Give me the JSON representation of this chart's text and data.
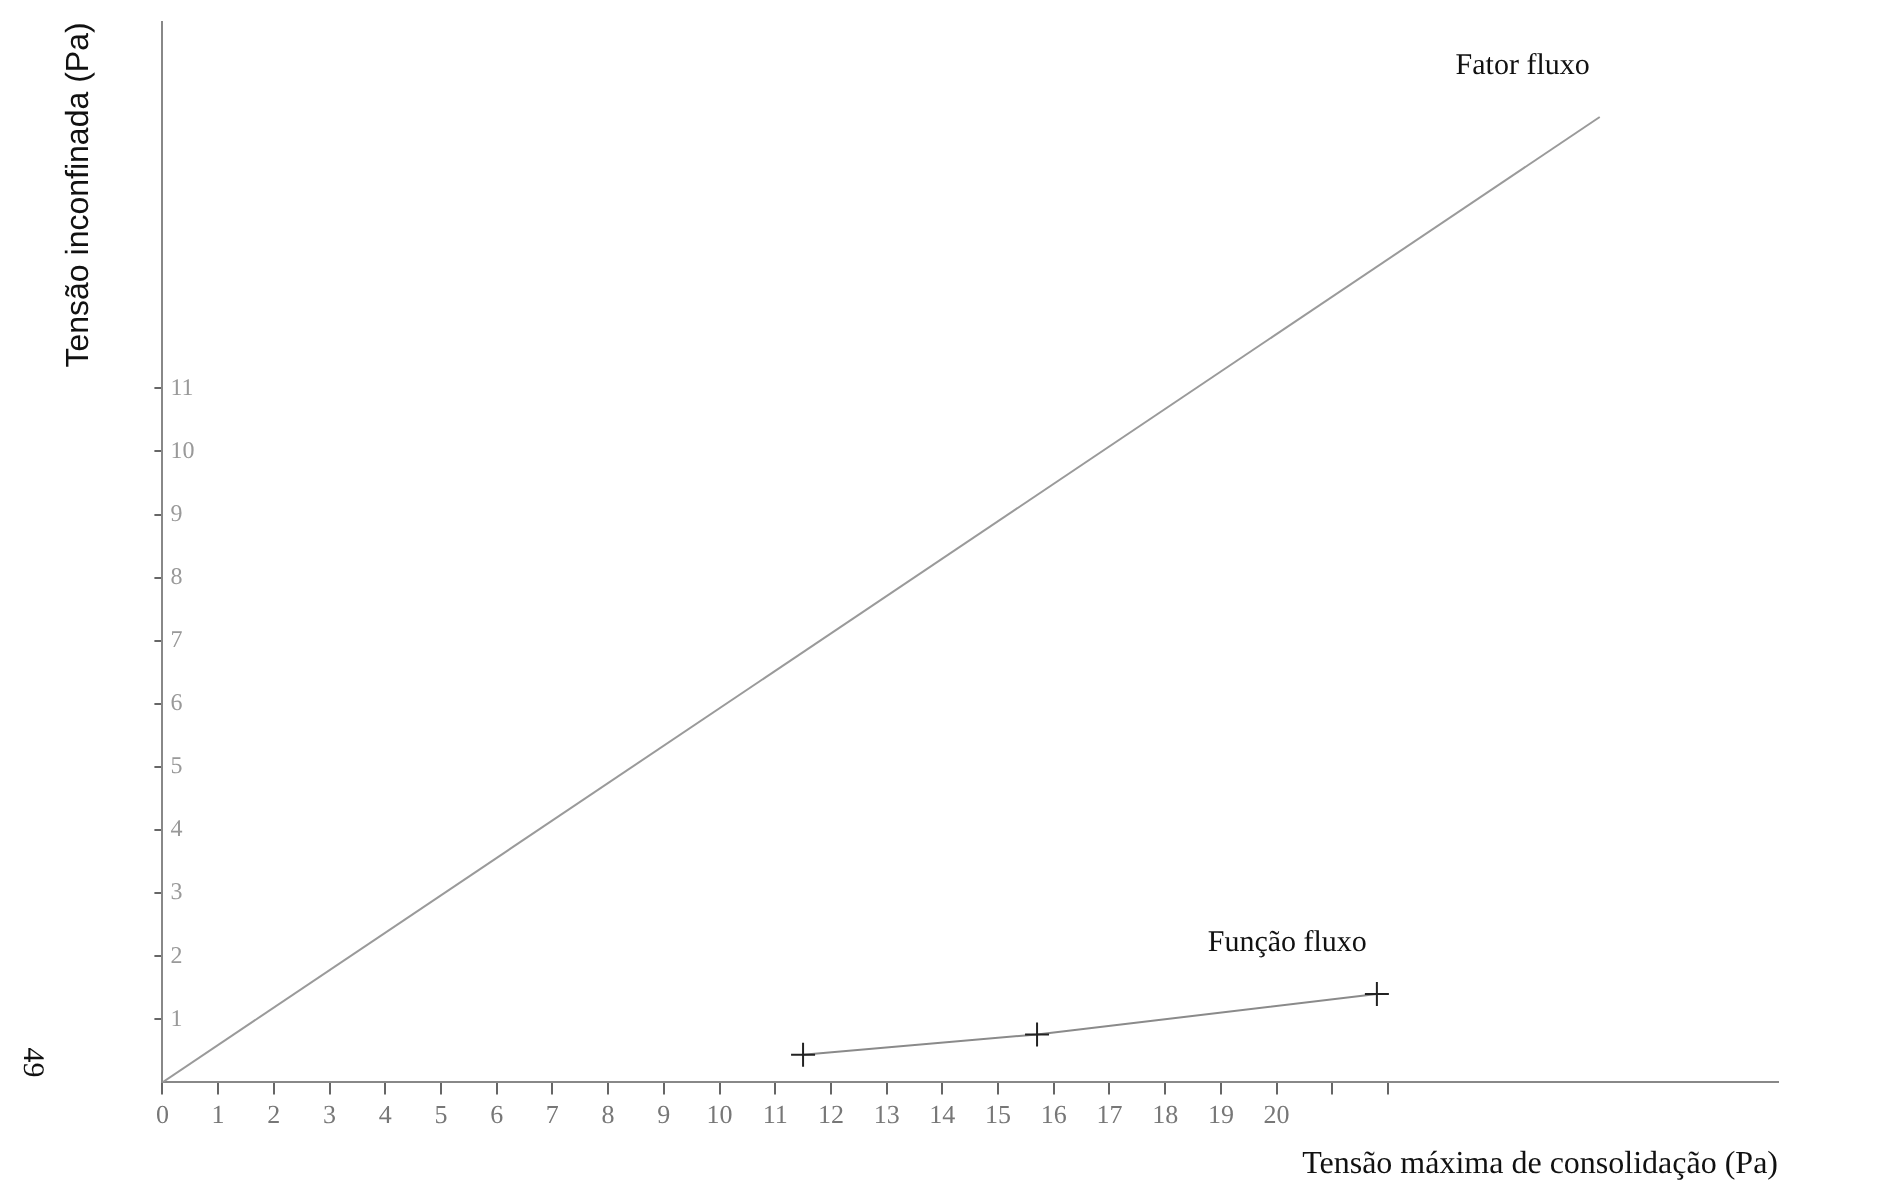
{
  "chart_data": {
    "type": "line",
    "xlabel": "Tensão máxima de consolidação (Pa)",
    "ylabel": "Tensão inconfinada (Pa)",
    "xlim": [
      0,
      29
    ],
    "ylim": [
      0,
      16.8
    ],
    "xticks": [
      0,
      1,
      2,
      3,
      4,
      5,
      6,
      7,
      8,
      9,
      10,
      11,
      12,
      13,
      14,
      15,
      16,
      17,
      18,
      19,
      20,
      {
        "value": 21,
        "label": null
      },
      {
        "value": 22,
        "label": null
      }
    ],
    "yticks": [
      1,
      2,
      3,
      4,
      5,
      6,
      7,
      8,
      9,
      10,
      11
    ],
    "grid": false,
    "legend": false,
    "line_style": "solid",
    "annotations": [
      "49"
    ],
    "series": [
      {
        "name": "Fator fluxo",
        "color": "#9a9a9a",
        "x": [
          0,
          25.8
        ],
        "values": [
          0,
          15.3
        ],
        "marker": "none"
      },
      {
        "name": "Função fluxo",
        "color": "#8a8a8a",
        "x": [
          11.5,
          15.7,
          21.8
        ],
        "values": [
          0.44,
          0.76,
          1.4
        ],
        "marker": "cross"
      }
    ]
  }
}
